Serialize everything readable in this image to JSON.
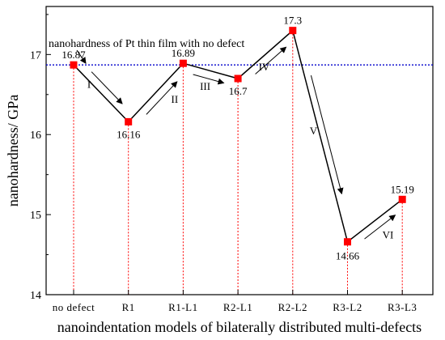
{
  "chart_data": {
    "type": "line",
    "title": "",
    "xlabel": "nanoindentation models of bilaterally distributed multi-defects",
    "ylabel": "nanohardness/ GPa",
    "categories": [
      "no defect",
      "R1",
      "R1-L1",
      "R2-L1",
      "R2-L2",
      "R3-L2",
      "R3-L3"
    ],
    "series": [
      {
        "values": [
          16.87,
          16.16,
          16.89,
          16.7,
          17.3,
          14.66,
          15.19
        ],
        "data_labels": [
          "16.87",
          "16.16",
          "16.89",
          "16.7",
          "17.3",
          "14.66",
          "15.19"
        ],
        "color": "#000000",
        "marker_color": "#ff0000"
      }
    ],
    "ylim": [
      14,
      17.6
    ],
    "yticks": [
      14,
      15,
      16,
      17
    ],
    "reference_line": {
      "value": 16.87,
      "label": "nanohardness of Pt thin film with no defect",
      "color": "#0000cc",
      "style": "dotted"
    },
    "drop_lines": {
      "color": "#ff0000",
      "style": "dotted"
    },
    "transitions": [
      {
        "label": "I",
        "from": 0,
        "to": 1
      },
      {
        "label": "II",
        "from": 1,
        "to": 2
      },
      {
        "label": "III",
        "from": 2,
        "to": 3
      },
      {
        "label": "IV",
        "from": 3,
        "to": 4
      },
      {
        "label": "V",
        "from": 4,
        "to": 5
      },
      {
        "label": "VI",
        "from": 5,
        "to": 6
      }
    ],
    "grid": false,
    "legend": "none"
  }
}
